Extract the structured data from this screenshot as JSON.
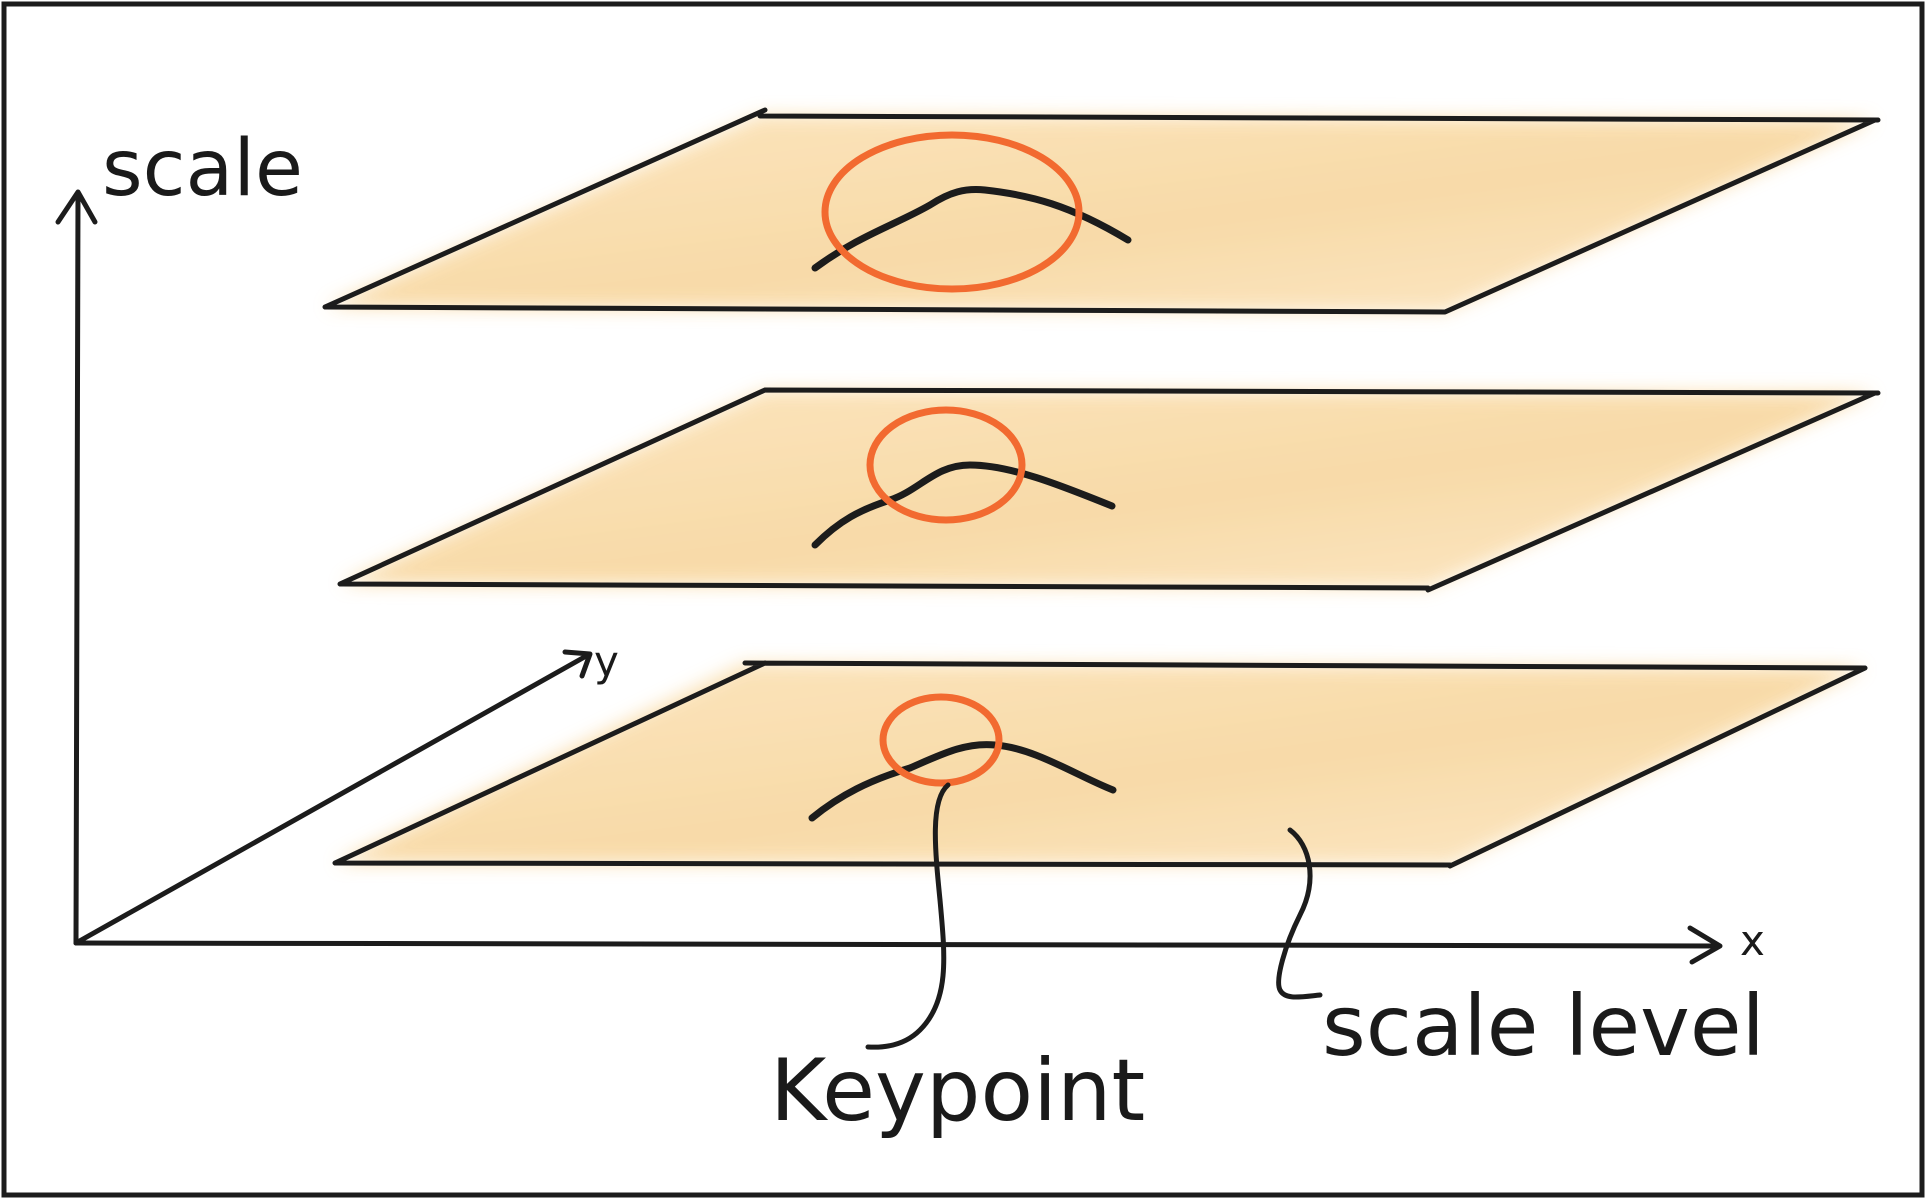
{
  "labels": {
    "scale_axis": "scale",
    "x_axis": "x",
    "y_axis": "y",
    "keypoint": "Keypoint",
    "scale_level": "scale level"
  },
  "colors": {
    "ink": "#1c1c1c",
    "plane_fill": "#f9d9a4",
    "keypoint_circle": "#f26a30",
    "frame": "#1c1c1c"
  }
}
